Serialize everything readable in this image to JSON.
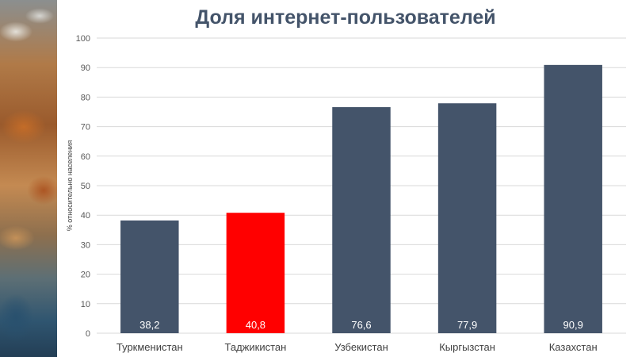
{
  "chart_data": {
    "type": "bar",
    "title": "Доля интернет-пользователей",
    "xlabel": "",
    "ylabel": "% относительно населения",
    "categories": [
      "Туркменистан",
      "Таджикистан",
      "Узбекистан",
      "Кыргызстан",
      "Казахстан"
    ],
    "values": [
      38.2,
      40.8,
      76.6,
      77.9,
      90.9
    ],
    "value_labels": [
      "38,2",
      "40,8",
      "76,6",
      "77,9",
      "90,9"
    ],
    "ylim": [
      0,
      100
    ],
    "yticks": [
      0,
      10,
      20,
      30,
      40,
      50,
      60,
      70,
      80,
      90,
      100
    ],
    "grid": true,
    "legend": "none",
    "colors": {
      "bar": "#44546a",
      "highlight": "#ff0000",
      "highlight_category": "Таджикистан",
      "gridline": "#d9d9d9",
      "title": "#44546a"
    }
  }
}
